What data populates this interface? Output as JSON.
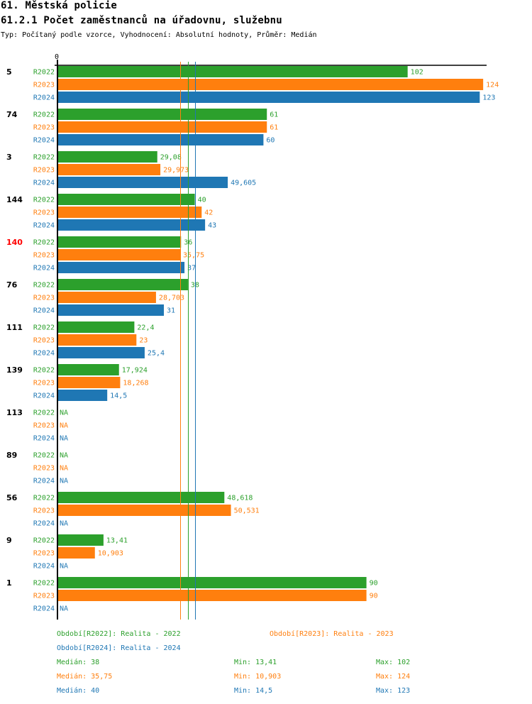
{
  "header": {
    "title": "61. Městská policie",
    "subtitle": "61.2.1 Počet zaměstnanců na úřadovnu, služebnu",
    "info": "Typ: Počítaný podle vzorce, Vyhodnocení: Absolutní hodnoty, Průměr: Medián"
  },
  "colors": {
    "R2022": "#2ca02c",
    "R2023": "#ff7f0e",
    "R2024": "#1f77b4",
    "highlight": "#ff0000",
    "axis": "#000000"
  },
  "chart_data": {
    "type": "bar",
    "orientation": "horizontal",
    "title": "61.2.1 Počet zaměstnanců na úřadovnu, služebnu",
    "axis_zero_label": "0",
    "xlim": [
      0,
      125
    ],
    "series_names": [
      "R2022",
      "R2023",
      "R2024"
    ],
    "categories": [
      "5",
      "74",
      "3",
      "144",
      "140",
      "76",
      "111",
      "139",
      "113",
      "89",
      "56",
      "9",
      "1"
    ],
    "highlighted_category": "140",
    "series": [
      {
        "name": "R2022",
        "values": [
          102,
          61,
          29.08,
          40,
          36,
          38,
          22.4,
          17.924,
          null,
          null,
          48.618,
          13.41,
          90
        ],
        "labels": [
          "102",
          "61",
          "29,08",
          "40",
          "36",
          "38",
          "22,4",
          "17,924",
          "NA",
          "NA",
          "48,618",
          "13,41",
          "90"
        ]
      },
      {
        "name": "R2023",
        "values": [
          124,
          61,
          29.973,
          42,
          35.75,
          28.703,
          23,
          18.268,
          null,
          null,
          50.531,
          10.903,
          90
        ],
        "labels": [
          "124",
          "61",
          "29,973",
          "42",
          "35,75",
          "28,703",
          "23",
          "18,268",
          "NA",
          "NA",
          "50,531",
          "10,903",
          "90"
        ]
      },
      {
        "name": "R2024",
        "values": [
          123,
          60,
          49.605,
          43,
          37,
          31,
          25.4,
          14.5,
          null,
          null,
          null,
          null,
          null
        ],
        "labels": [
          "123",
          "60",
          "49,605",
          "43",
          "37",
          "31",
          "25,4",
          "14,5",
          "NA",
          "NA",
          "NA",
          "NA",
          "NA"
        ]
      }
    ],
    "median_lines": [
      {
        "series": "R2023",
        "value": 35.75
      },
      {
        "series": "R2022",
        "value": 38
      },
      {
        "series": "R2024",
        "value": 40
      }
    ]
  },
  "legend": {
    "periods": [
      {
        "series": "R2022",
        "text": "Období[R2022]: Realita - 2022"
      },
      {
        "series": "R2023",
        "text": "Období[R2023]: Realita - 2023"
      },
      {
        "series": "R2024",
        "text": "Období[R2024]: Realita - 2024"
      }
    ],
    "stats": [
      {
        "series": "R2022",
        "median": "Medián: 38",
        "min": "Min: 13,41",
        "max": "Max: 102"
      },
      {
        "series": "R2023",
        "median": "Medián: 35,75",
        "min": "Min: 10,903",
        "max": "Max: 124"
      },
      {
        "series": "R2024",
        "median": "Medián: 40",
        "min": "Min: 14,5",
        "max": "Max: 123"
      }
    ]
  }
}
